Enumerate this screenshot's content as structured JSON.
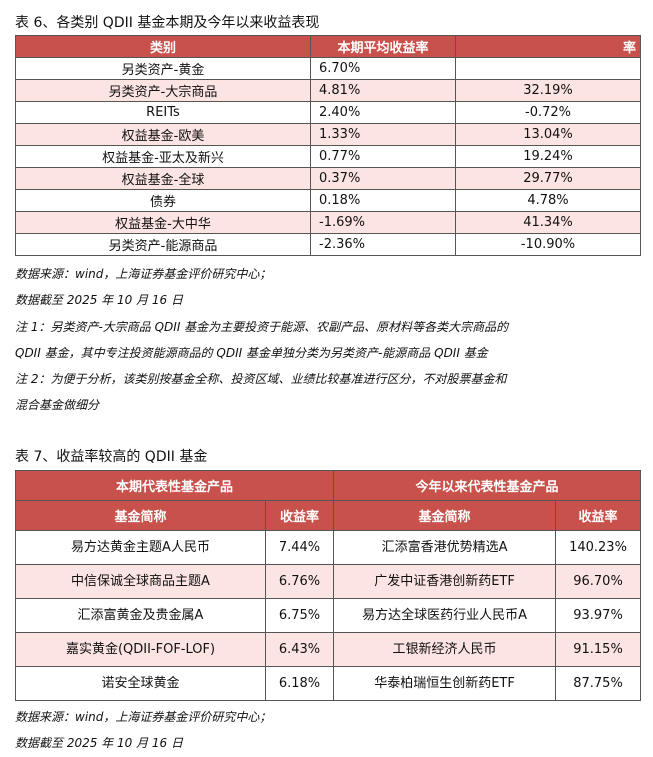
{
  "table6": {
    "title": "表 6、各类别 QDII 基金本期及今年以来收益表现",
    "headers": [
      "类别",
      "本期平均收益率",
      "率"
    ],
    "rows": [
      [
        "另类资产-黄金",
        "6.70%",
        ""
      ],
      [
        "另类资产-大宗商品",
        "4.81%",
        "32.19%"
      ],
      [
        "REITs",
        "2.40%",
        "-0.72%"
      ],
      [
        "权益基金-欧美",
        "1.33%",
        "13.04%"
      ],
      [
        "权益基金-亚太及新兴",
        "0.77%",
        "19.24%"
      ],
      [
        "权益基金-全球",
        "0.37%",
        "29.77%"
      ],
      [
        "债券",
        "0.18%",
        "4.78%"
      ],
      [
        "权益基金-大中华",
        "-1.69%",
        "41.34%"
      ],
      [
        "另类资产-能源商品",
        "-2.36%",
        "-10.90%"
      ]
    ]
  },
  "notes": [
    "数据来源：wind，上海证券基金评价研究中心；",
    "数据截至 2025 年 10 月 16 日",
    "注 1：另类资产-大宗商品 QDII 基金为主要投资于能源、农副产品、原材料等各类大宗商品的",
    "QDII 基金，其中专注投资能源商品的 QDII 基金单独分类为另类资产-能源商品 QDII 基金",
    "注 2：为便于分析，该类别按基金全称、投资区域、业绩比较基准进行区分，不对股票基金和",
    "混合基金做细分"
  ],
  "table7": {
    "title": "表 7、收益率较高的 QDII 基金",
    "group_headers": [
      "本期代表性基金产品",
      "今年以来代表性基金产品"
    ],
    "headers": [
      "基金简称",
      "收益率",
      "基金简称",
      "收益率"
    ],
    "rows": [
      [
        "易方达黄金主题A人民币",
        "7.44%",
        "汇添富香港优势精选A",
        "140.23%"
      ],
      [
        "中信保诚全球商品主题A",
        "6.76%",
        "广发中证香港创新药ETF",
        "96.70%"
      ],
      [
        "汇添富黄金及贵金属A",
        "6.75%",
        "易方达全球医药行业人民币A",
        "93.97%"
      ],
      [
        "嘉实黄金(QDII-FOF-LOF)",
        "6.43%",
        "工银新经济人民币",
        "91.15%"
      ],
      [
        "诺安全球黄金",
        "6.18%",
        "华泰柏瑞恒生创新药ETF",
        "87.75%"
      ]
    ]
  },
  "footer": [
    "数据来源：wind，上海证券基金评价研究中心；",
    "数据截至 2025 年 10 月 16 日"
  ]
}
